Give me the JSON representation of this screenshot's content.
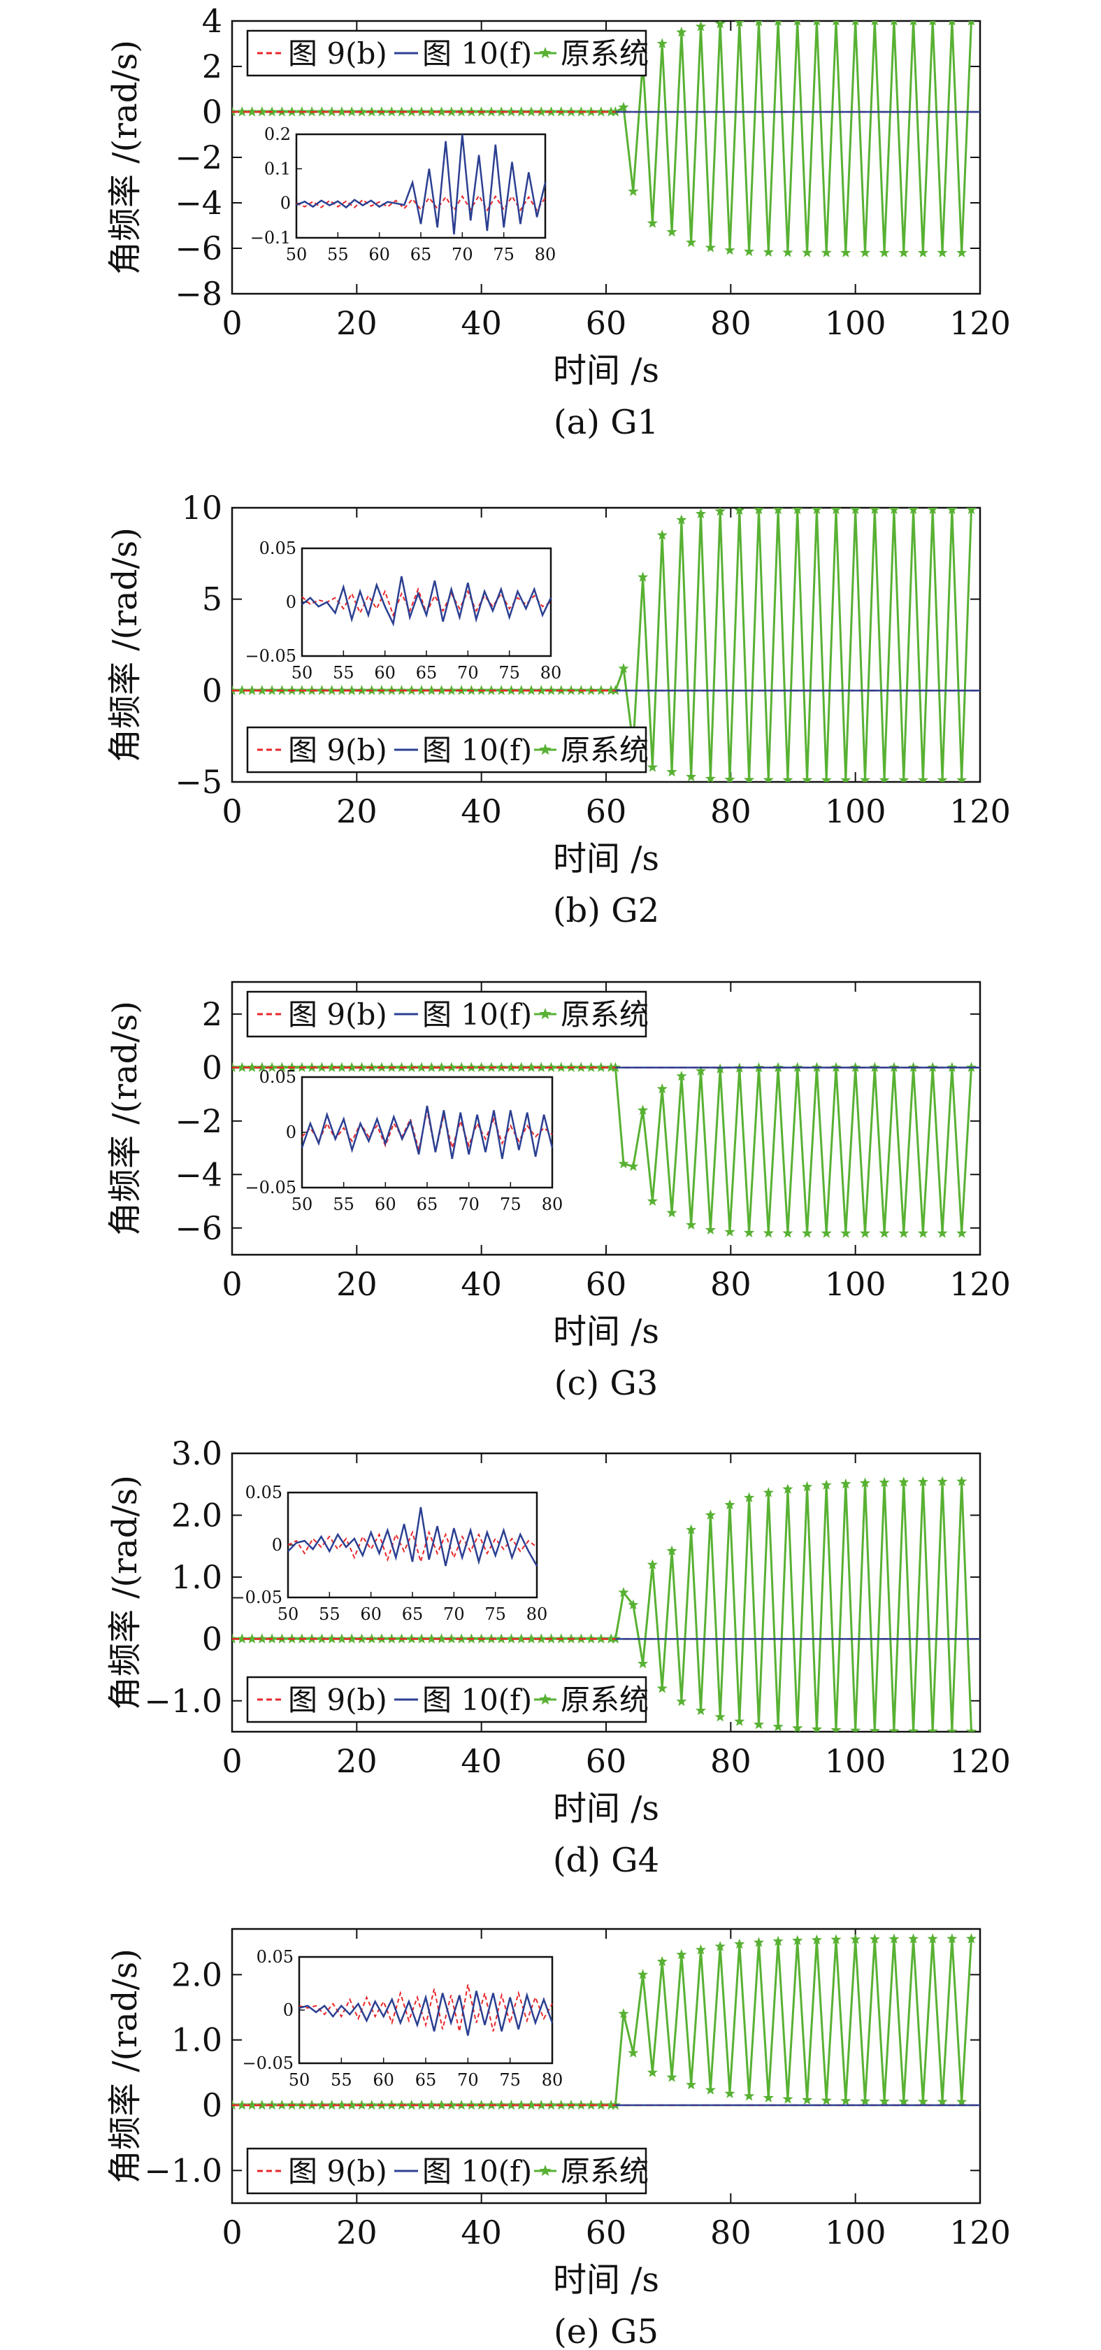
{
  "legend": {
    "series_a": "图 9(b)",
    "series_b": "图 10(f)",
    "series_c": "原系统"
  },
  "colors": {
    "series_a": "#e8262a",
    "series_b": "#2b3f91",
    "series_c": "#58b133",
    "axis": "#111111"
  },
  "chart_data": [
    {
      "type": "line",
      "caption": "(a) G1",
      "xlabel": "时间 /s",
      "ylabel": "角频率 /(rad/s)",
      "xlim": [
        0,
        120
      ],
      "ylim": [
        -8,
        4
      ],
      "xticks": [
        0,
        20,
        40,
        60,
        80,
        100,
        120
      ],
      "yticks": [
        4,
        2,
        0,
        -2,
        -4,
        -6,
        -8
      ],
      "ytick_labels": [
        "4",
        "2",
        "0",
        "−2",
        "−4",
        "−6",
        "−8"
      ],
      "legend_position": "top-left",
      "original_system": {
        "onset_time": 61.5,
        "first_points": [
          0.2,
          -3.5,
          2.2,
          -4.9,
          3.0
        ],
        "upper": 4.0,
        "lower": -6.2,
        "settle_rate": 0.35
      },
      "inset": {
        "position": "middle-left",
        "xlim": [
          50,
          80
        ],
        "ylim": [
          -0.1,
          0.2
        ],
        "xticks": [
          50,
          55,
          60,
          65,
          70,
          75,
          80
        ],
        "yticks": [
          0.2,
          0.1,
          0,
          -0.1
        ],
        "ytick_labels": [
          "0.2",
          "0.1",
          "0",
          "−0.1"
        ],
        "series_a_values": [
          0.0,
          -0.01,
          0.005,
          -0.012,
          0.008,
          -0.01,
          0.006,
          -0.012,
          0.01,
          -0.008,
          0.004,
          -0.01,
          0.008,
          -0.015,
          0.012,
          -0.018,
          0.016,
          -0.015,
          0.018,
          -0.02,
          0.02,
          -0.018,
          0.022,
          -0.02,
          0.02,
          -0.018,
          0.02,
          -0.02,
          0.018,
          -0.02,
          0.016
        ],
        "series_b_values": [
          -0.005,
          0.005,
          -0.01,
          0.008,
          -0.006,
          0.006,
          -0.012,
          0.01,
          -0.006,
          0.008,
          -0.01,
          0.004,
          0.0,
          -0.005,
          0.06,
          -0.06,
          0.1,
          -0.07,
          0.18,
          -0.09,
          0.2,
          -0.05,
          0.14,
          -0.08,
          0.17,
          -0.07,
          0.12,
          -0.06,
          0.09,
          -0.04,
          0.06
        ]
      }
    },
    {
      "type": "line",
      "caption": "(b) G2",
      "xlabel": "时间 /s",
      "ylabel": "角频率 /(rad/s)",
      "xlim": [
        0,
        120
      ],
      "ylim": [
        -5,
        10
      ],
      "xticks": [
        0,
        20,
        40,
        60,
        80,
        100,
        120
      ],
      "yticks": [
        10,
        5,
        0,
        -5
      ],
      "ytick_labels": [
        "10",
        "5",
        "0",
        "−5"
      ],
      "legend_position": "bottom-left",
      "original_system": {
        "onset_time": 61.5,
        "first_points": [
          1.2,
          -3.0,
          6.2,
          -4.2,
          8.5
        ],
        "upper": 9.9,
        "lower": -4.9,
        "settle_rate": 0.45
      },
      "inset": {
        "position": "top-left",
        "xlim": [
          50,
          80
        ],
        "ylim": [
          -0.05,
          0.05
        ],
        "xticks": [
          50,
          55,
          60,
          65,
          70,
          75,
          80
        ],
        "yticks": [
          0.05,
          0,
          -0.05
        ],
        "ytick_labels": [
          "0.05",
          "0",
          "−0.05"
        ],
        "series_a_values": [
          0.005,
          -0.002,
          0.002,
          0.0,
          0.004,
          -0.006,
          0.008,
          -0.01,
          0.006,
          -0.006,
          0.01,
          -0.012,
          0.008,
          -0.008,
          0.012,
          -0.01,
          0.006,
          -0.008,
          0.008,
          -0.006,
          0.01,
          -0.008,
          0.006,
          -0.004,
          0.008,
          -0.006,
          0.004,
          -0.002,
          0.006,
          -0.004,
          0.0
        ],
        "series_b_values": [
          -0.002,
          0.004,
          -0.004,
          0.0,
          -0.01,
          0.014,
          -0.016,
          0.01,
          -0.012,
          0.016,
          -0.004,
          -0.02,
          0.024,
          -0.014,
          0.008,
          -0.012,
          0.02,
          -0.018,
          0.012,
          -0.014,
          0.018,
          -0.016,
          0.01,
          -0.008,
          0.012,
          -0.014,
          0.01,
          -0.006,
          0.012,
          -0.012,
          0.004
        ]
      }
    },
    {
      "type": "line",
      "caption": "(c) G3",
      "xlabel": "时间 /s",
      "ylabel": "角频率 /(rad/s)",
      "xlim": [
        0,
        120
      ],
      "ylim": [
        -7,
        3.2
      ],
      "xticks": [
        0,
        20,
        40,
        60,
        80,
        100,
        120
      ],
      "yticks": [
        2,
        0,
        -2,
        -4,
        -6
      ],
      "ytick_labels": [
        "2",
        "0",
        "−2",
        "−4",
        "−6"
      ],
      "legend_position": "top-left",
      "original_system": {
        "onset_time": 61.5,
        "first_points": [
          -3.6,
          -3.7,
          -1.6,
          -5.0,
          -0.8
        ],
        "upper": 0.0,
        "lower": -6.2,
        "settle_rate": 0.45
      },
      "inset": {
        "position": "middle-left",
        "xlim": [
          50,
          80
        ],
        "ylim": [
          -0.05,
          0.05
        ],
        "xticks": [
          50,
          55,
          60,
          65,
          70,
          75,
          80
        ],
        "yticks": [
          0.05,
          0,
          -0.05
        ],
        "ytick_labels": [
          "0.05",
          "0",
          "−0.05"
        ],
        "series_a_values": [
          -0.004,
          0.004,
          -0.008,
          0.008,
          -0.006,
          0.004,
          -0.008,
          0.008,
          -0.004,
          0.006,
          -0.012,
          0.008,
          -0.004,
          0.012,
          -0.016,
          0.02,
          -0.018,
          0.016,
          -0.014,
          0.01,
          -0.012,
          0.008,
          -0.006,
          0.012,
          -0.01,
          0.006,
          -0.008,
          0.006,
          -0.004,
          0.004,
          -0.002
        ],
        "series_b_values": [
          -0.014,
          0.008,
          -0.01,
          0.016,
          -0.006,
          0.012,
          -0.016,
          0.008,
          -0.008,
          0.012,
          -0.01,
          0.014,
          -0.006,
          0.01,
          -0.02,
          0.024,
          -0.018,
          0.02,
          -0.024,
          0.018,
          -0.02,
          0.016,
          -0.018,
          0.02,
          -0.024,
          0.02,
          -0.016,
          0.018,
          -0.022,
          0.016,
          -0.014
        ]
      }
    },
    {
      "type": "line",
      "caption": "(d) G4",
      "xlabel": "时间 /s",
      "ylabel": "角频率 /(rad/s)",
      "xlim": [
        0,
        120
      ],
      "ylim": [
        -1.5,
        3.0
      ],
      "xticks": [
        0,
        20,
        40,
        60,
        80,
        100,
        120
      ],
      "yticks": [
        3.0,
        2.0,
        1.0,
        0,
        -1.0
      ],
      "ytick_labels": [
        "3.0",
        "2.0",
        "1.0",
        "0",
        "−1.0"
      ],
      "legend_position": "bottom-left",
      "original_system": {
        "onset_time": 61.5,
        "first_points": [
          0.75,
          0.55,
          -0.4,
          1.2,
          -0.8
        ],
        "upper": 2.55,
        "lower": -1.5,
        "settle_rate": 0.18
      },
      "inset": {
        "position": "top-left",
        "xlim": [
          50,
          80
        ],
        "ylim": [
          -0.05,
          0.05
        ],
        "xticks": [
          50,
          55,
          60,
          65,
          70,
          75,
          80
        ],
        "yticks": [
          0.05,
          0,
          -0.05
        ],
        "ytick_labels": [
          "0.05",
          "0",
          "−0.05"
        ],
        "series_a_values": [
          0.0,
          0.004,
          -0.008,
          0.006,
          -0.002,
          0.008,
          -0.004,
          0.006,
          -0.012,
          0.008,
          -0.004,
          0.01,
          -0.014,
          0.01,
          -0.006,
          0.012,
          -0.016,
          0.012,
          -0.008,
          0.01,
          -0.012,
          0.008,
          -0.006,
          0.01,
          -0.008,
          0.006,
          -0.004,
          0.006,
          -0.006,
          0.004,
          -0.002
        ],
        "series_b_values": [
          -0.006,
          0.002,
          0.004,
          -0.004,
          0.008,
          -0.006,
          0.01,
          -0.002,
          0.006,
          -0.01,
          0.012,
          -0.008,
          0.014,
          -0.012,
          0.02,
          -0.016,
          0.036,
          -0.014,
          0.018,
          -0.02,
          0.016,
          -0.012,
          0.014,
          -0.016,
          0.012,
          -0.01,
          0.014,
          -0.012,
          0.01,
          -0.006,
          -0.02
        ]
      }
    },
    {
      "type": "line",
      "caption": "(e) G5",
      "xlabel": "时间 /s",
      "ylabel": "角频率 /(rad/s)",
      "xlim": [
        0,
        120
      ],
      "ylim": [
        -1.5,
        2.7
      ],
      "xticks": [
        0,
        20,
        40,
        60,
        80,
        100,
        120
      ],
      "yticks": [
        2.0,
        1.0,
        0,
        -1.0
      ],
      "ytick_labels": [
        "2.0",
        "1.0",
        "0",
        "−1.0"
      ],
      "legend_position": "bottom-left",
      "original_system": {
        "onset_time": 61.5,
        "first_points": [
          1.4,
          0.8,
          2.0,
          0.5,
          2.2
        ],
        "upper": 2.55,
        "lower": 0.05,
        "settle_rate": 0.18
      },
      "inset": {
        "position": "top-left",
        "xlim": [
          50,
          80
        ],
        "ylim": [
          -0.05,
          0.05
        ],
        "xticks": [
          50,
          55,
          60,
          65,
          70,
          75,
          80
        ],
        "yticks": [
          0.05,
          0,
          -0.05
        ],
        "ytick_labels": [
          "0.05",
          "0",
          "−0.05"
        ],
        "series_a_values": [
          0.004,
          0.002,
          0.004,
          -0.004,
          0.006,
          -0.006,
          0.01,
          -0.008,
          0.012,
          -0.006,
          0.008,
          -0.012,
          0.016,
          -0.01,
          0.012,
          -0.014,
          0.02,
          -0.018,
          0.014,
          -0.02,
          0.024,
          -0.012,
          0.016,
          -0.02,
          0.014,
          -0.012,
          0.016,
          -0.01,
          0.012,
          -0.008,
          0.006
        ],
        "series_b_values": [
          0.002,
          0.004,
          -0.002,
          0.004,
          -0.006,
          0.004,
          -0.004,
          0.006,
          -0.01,
          0.008,
          -0.006,
          0.01,
          -0.012,
          0.008,
          -0.014,
          0.012,
          -0.02,
          0.016,
          -0.012,
          0.014,
          -0.024,
          0.018,
          -0.014,
          0.016,
          -0.02,
          0.012,
          -0.018,
          0.014,
          -0.012,
          0.01,
          -0.012
        ]
      }
    }
  ]
}
